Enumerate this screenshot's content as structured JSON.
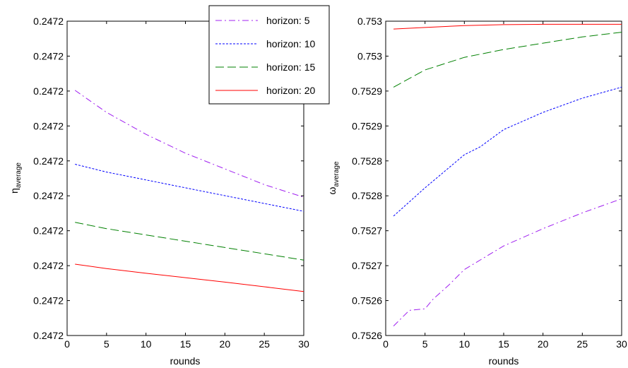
{
  "chart_data": [
    {
      "type": "line",
      "xlabel": "rounds",
      "ylabel": {
        "main": "η",
        "sub": "average"
      },
      "xlim": [
        0,
        30
      ],
      "x_ticks": [
        "0",
        "5",
        "10",
        "15",
        "20",
        "25",
        "30"
      ],
      "y_ticks": [
        "0.2472",
        "0.2472",
        "0.2472",
        "0.2472",
        "0.2472",
        "0.2472",
        "0.2472",
        "0.2472",
        "0.2472",
        "0.2472"
      ],
      "grid": false,
      "legend": {
        "placement": "top-right",
        "entries": [
          "horizon: 5",
          "horizon: 10",
          "horizon: 15",
          "horizon: 20"
        ]
      },
      "series": [
        {
          "name": "horizon: 5",
          "color": "#a020f0",
          "style": "dashdot",
          "x": [
            1,
            5,
            10,
            15,
            20,
            25,
            30
          ],
          "y": [
            0.78,
            0.71,
            0.64,
            0.58,
            0.53,
            0.48,
            0.44
          ]
        },
        {
          "name": "horizon: 10",
          "color": "#0000ff",
          "style": "dotted",
          "x": [
            1,
            5,
            10,
            15,
            20,
            25,
            30
          ],
          "y": [
            0.545,
            0.52,
            0.495,
            0.47,
            0.445,
            0.42,
            0.395
          ]
        },
        {
          "name": "horizon: 15",
          "color": "#008000",
          "style": "dashed",
          "x": [
            1,
            5,
            10,
            15,
            20,
            25,
            30
          ],
          "y": [
            0.36,
            0.34,
            0.32,
            0.3,
            0.28,
            0.26,
            0.24
          ]
        },
        {
          "name": "horizon: 20",
          "color": "#ff0000",
          "style": "solid",
          "x": [
            1,
            5,
            10,
            15,
            20,
            25,
            30
          ],
          "y": [
            0.227,
            0.213,
            0.198,
            0.184,
            0.17,
            0.155,
            0.14
          ]
        }
      ]
    },
    {
      "type": "line",
      "xlabel": "rounds",
      "ylabel": {
        "main": "ω",
        "sub": "average"
      },
      "xlim": [
        0,
        30
      ],
      "x_ticks": [
        "0",
        "5",
        "10",
        "15",
        "20",
        "25",
        "30"
      ],
      "y_ticks": [
        "0.7526",
        "0.7526",
        "0.7527",
        "0.7527",
        "0.7528",
        "0.7528",
        "0.7529",
        "0.7529",
        "0.753",
        "0.753"
      ],
      "grid": false,
      "series": [
        {
          "name": "horizon: 5",
          "color": "#a020f0",
          "style": "dashdot",
          "x": [
            1,
            3,
            5,
            6,
            8,
            10,
            15,
            20,
            25,
            30
          ],
          "y": [
            0.03,
            0.08,
            0.085,
            0.115,
            0.16,
            0.21,
            0.285,
            0.34,
            0.39,
            0.435
          ]
        },
        {
          "name": "horizon: 10",
          "color": "#0000ff",
          "style": "dotted",
          "x": [
            1,
            5,
            10,
            12,
            15,
            20,
            25,
            30
          ],
          "y": [
            0.38,
            0.47,
            0.575,
            0.6,
            0.655,
            0.71,
            0.755,
            0.79
          ]
        },
        {
          "name": "horizon: 15",
          "color": "#008000",
          "style": "dashed",
          "x": [
            1,
            5,
            10,
            15,
            20,
            25,
            30
          ],
          "y": [
            0.79,
            0.845,
            0.885,
            0.91,
            0.93,
            0.95,
            0.965
          ]
        },
        {
          "name": "horizon: 20",
          "color": "#ff0000",
          "style": "solid",
          "x": [
            1,
            5,
            10,
            15,
            20,
            25,
            30
          ],
          "y": [
            0.975,
            0.98,
            0.986,
            0.989,
            0.99,
            0.99,
            0.99
          ]
        }
      ]
    }
  ]
}
